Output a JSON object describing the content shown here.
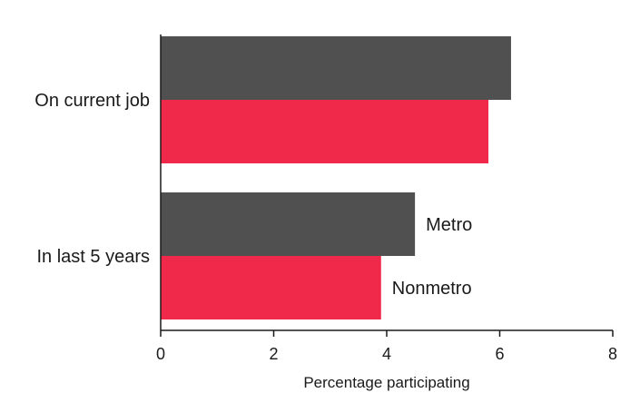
{
  "chart_data": {
    "type": "bar",
    "orientation": "horizontal",
    "categories": [
      "On current job",
      "In last 5 years"
    ],
    "series": [
      {
        "name": "Metro",
        "color": "#505050",
        "values": [
          6.2,
          4.5
        ]
      },
      {
        "name": "Nonmetro",
        "color": "#f0284a",
        "values": [
          5.8,
          3.9
        ]
      }
    ],
    "xlabel": "Percentage participating",
    "ylabel": "",
    "xlim": [
      0,
      8
    ],
    "xticks": [
      "0",
      "2",
      "4",
      "6",
      "8"
    ],
    "grid": false,
    "legend": "inline-labels-next-to-bars"
  }
}
